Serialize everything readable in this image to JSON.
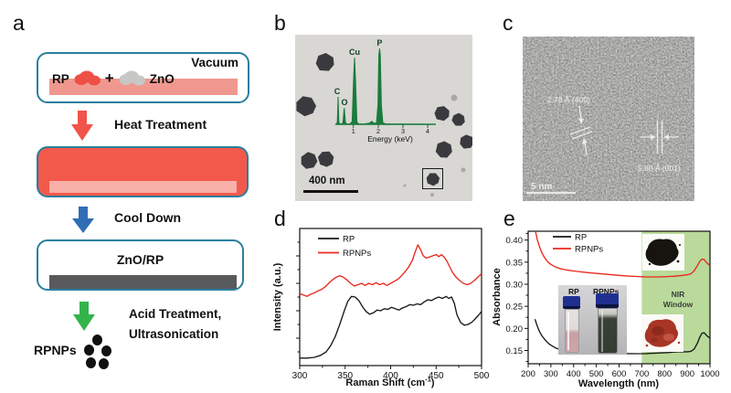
{
  "panels": {
    "a": {
      "label": "a",
      "vacuum": "Vacuum",
      "rp": "RP",
      "plus": "+",
      "zno": "ZnO",
      "heat": "Heat Treatment",
      "cool": "Cool Down",
      "znorp": "ZnO/RP",
      "acid1": "Acid Treatment,",
      "acid2": "Ultrasonication",
      "product": "RPNPs"
    },
    "b": {
      "label": "b",
      "scale_bar": "400 nm",
      "eds": {
        "xlabel": "Energy (keV)",
        "xticks": [
          "1",
          "2",
          "3",
          "4"
        ],
        "peaks": [
          {
            "element": "C",
            "kev": 0.27
          },
          {
            "element": "O",
            "kev": 0.52
          },
          {
            "element": "Cu",
            "kev": 0.93
          },
          {
            "element": "P",
            "kev": 2.01
          }
        ]
      }
    },
    "c": {
      "label": "c",
      "annotation1": "2.78 Å (400)",
      "annotation2": "5.80 Å (001)",
      "scale_bar": "5 nm"
    },
    "d": {
      "label": "d"
    },
    "e": {
      "label": "e",
      "nir_line1": "NIR",
      "nir_line2": "Window",
      "vial_left": "RP",
      "vial_right": "RPNPs"
    }
  },
  "colors": {
    "teal_border": "#2a7f9e",
    "red_fill": "#f3594b",
    "pink_bar": "#f0988f",
    "pale_pink_bar": "#f8b0a8",
    "blue_arrow": "#2f6eb5",
    "green_arrow": "#33b44a",
    "dark_gray_bar": "#58595b",
    "eds_green": "#1a7b3d",
    "nir_green": "#b9da9b",
    "curve_red": "#e8291c",
    "curve_black": "#1a1a1a"
  },
  "chart_data": [
    {
      "type": "line",
      "title": "",
      "xlabel": "Raman Shift (cm⁻¹)",
      "xlabel_parts": [
        "Raman Shift (cm",
        "-1",
        ")"
      ],
      "ylabel": "Intensity (a.u.)",
      "xlim": [
        300,
        500
      ],
      "ylim": [
        0,
        1
      ],
      "grid": false,
      "legend_position": "top-left",
      "xticks": [
        {
          "v": 300,
          "t": "300"
        },
        {
          "v": 350,
          "t": "350"
        },
        {
          "v": 400,
          "t": "400"
        },
        {
          "v": 450,
          "t": "450"
        },
        {
          "v": 500,
          "t": "500"
        }
      ],
      "xminor": [
        325,
        375,
        425,
        475
      ],
      "yticks": [
        {
          "v": 0.2,
          "t": ""
        },
        {
          "v": 0.4,
          "t": ""
        },
        {
          "v": 0.6,
          "t": ""
        },
        {
          "v": 0.8,
          "t": ""
        }
      ],
      "yminor": [
        0.1,
        0.3,
        0.5,
        0.7,
        0.9
      ],
      "series": [
        {
          "name": "RP",
          "color": "#1a1a1a",
          "x": [
            300,
            308,
            316,
            323,
            329,
            334,
            339,
            344,
            349,
            353,
            357,
            361,
            365,
            369,
            373,
            377,
            381,
            385,
            389,
            393,
            397,
            401,
            405,
            409,
            413,
            417,
            421,
            425,
            429,
            433,
            437,
            441,
            445,
            449,
            453,
            457,
            461,
            464,
            467,
            470,
            473,
            477,
            481,
            485,
            489,
            493,
            497,
            500
          ],
          "y": [
            0.055,
            0.055,
            0.06,
            0.075,
            0.1,
            0.145,
            0.21,
            0.3,
            0.4,
            0.47,
            0.505,
            0.5,
            0.475,
            0.43,
            0.395,
            0.375,
            0.385,
            0.405,
            0.4,
            0.415,
            0.41,
            0.425,
            0.415,
            0.405,
            0.42,
            0.43,
            0.445,
            0.44,
            0.45,
            0.445,
            0.465,
            0.48,
            0.475,
            0.49,
            0.5,
            0.49,
            0.505,
            0.49,
            0.5,
            0.455,
            0.37,
            0.315,
            0.295,
            0.3,
            0.315,
            0.34,
            0.37,
            0.395
          ]
        },
        {
          "name": "RPNPs",
          "color": "#e8291c",
          "x": [
            300,
            304,
            308,
            312,
            316,
            320,
            324,
            328,
            332,
            336,
            340,
            344,
            348,
            352,
            356,
            360,
            364,
            368,
            372,
            376,
            380,
            384,
            388,
            392,
            396,
            400,
            404,
            408,
            412,
            416,
            420,
            424,
            427,
            430,
            433,
            436,
            439,
            442,
            446,
            450,
            453,
            456,
            459,
            462,
            465,
            468,
            472,
            476,
            480,
            484,
            488,
            492,
            496,
            500
          ],
          "y": [
            0.525,
            0.515,
            0.505,
            0.52,
            0.53,
            0.545,
            0.555,
            0.575,
            0.6,
            0.625,
            0.645,
            0.655,
            0.645,
            0.625,
            0.6,
            0.58,
            0.59,
            0.6,
            0.585,
            0.6,
            0.59,
            0.605,
            0.59,
            0.6,
            0.585,
            0.6,
            0.615,
            0.63,
            0.655,
            0.685,
            0.72,
            0.77,
            0.83,
            0.88,
            0.845,
            0.8,
            0.785,
            0.79,
            0.8,
            0.81,
            0.795,
            0.81,
            0.79,
            0.76,
            0.72,
            0.68,
            0.645,
            0.62,
            0.6,
            0.59,
            0.6,
            0.62,
            0.645,
            0.67
          ]
        }
      ]
    },
    {
      "type": "line",
      "title": "",
      "xlabel": "Wavelength (nm)",
      "ylabel": "Absorbance",
      "xlim": [
        200,
        1000
      ],
      "ylim": [
        0.12,
        0.42
      ],
      "grid": false,
      "legend_position": "top-left",
      "region": {
        "label": "NIR Window",
        "x0": 700,
        "x1": 1000,
        "color": "#b9da9b"
      },
      "xticks": [
        {
          "v": 200,
          "t": "200"
        },
        {
          "v": 300,
          "t": "300"
        },
        {
          "v": 400,
          "t": "400"
        },
        {
          "v": 500,
          "t": "500"
        },
        {
          "v": 600,
          "t": "600"
        },
        {
          "v": 700,
          "t": "700"
        },
        {
          "v": 800,
          "t": "800"
        },
        {
          "v": 900,
          "t": "900"
        },
        {
          "v": 1000,
          "t": "1000"
        }
      ],
      "xminor": [
        250,
        350,
        450,
        550,
        650,
        750,
        850,
        950
      ],
      "yticks": [
        {
          "v": 0.15,
          "t": "0.15"
        },
        {
          "v": 0.2,
          "t": "0.20"
        },
        {
          "v": 0.25,
          "t": "0.25"
        },
        {
          "v": 0.3,
          "t": "0.30"
        },
        {
          "v": 0.35,
          "t": "0.35"
        },
        {
          "v": 0.4,
          "t": "0.40"
        }
      ],
      "yminor": [
        0.125,
        0.175,
        0.225,
        0.275,
        0.325,
        0.375,
        0.415
      ],
      "series": [
        {
          "name": "RP",
          "color": "#1a1a1a",
          "x": [
            230,
            240,
            250,
            260,
            270,
            280,
            290,
            300,
            320,
            340,
            360,
            380,
            400,
            440,
            480,
            520,
            560,
            600,
            640,
            680,
            700,
            720,
            740,
            760,
            780,
            800,
            820,
            840,
            860,
            880,
            900,
            915,
            930,
            945,
            955,
            965,
            975,
            985,
            1000
          ],
          "y": [
            0.221,
            0.205,
            0.193,
            0.184,
            0.177,
            0.171,
            0.166,
            0.162,
            0.156,
            0.152,
            0.15,
            0.148,
            0.147,
            0.146,
            0.145,
            0.1445,
            0.144,
            0.1435,
            0.143,
            0.1428,
            0.1428,
            0.143,
            0.1435,
            0.144,
            0.1445,
            0.145,
            0.1455,
            0.1465,
            0.147,
            0.1472,
            0.147,
            0.148,
            0.153,
            0.167,
            0.18,
            0.189,
            0.19,
            0.184,
            0.178
          ]
        },
        {
          "name": "RPNPs",
          "color": "#e8291c",
          "x": [
            230,
            240,
            250,
            260,
            270,
            280,
            290,
            300,
            320,
            340,
            360,
            380,
            400,
            440,
            480,
            520,
            560,
            600,
            640,
            680,
            700,
            720,
            740,
            760,
            780,
            800,
            820,
            840,
            860,
            880,
            900,
            915,
            930,
            945,
            955,
            965,
            975,
            985,
            1000
          ],
          "y": [
            0.425,
            0.401,
            0.385,
            0.372,
            0.362,
            0.3545,
            0.349,
            0.345,
            0.339,
            0.3355,
            0.333,
            0.3315,
            0.33,
            0.3275,
            0.3255,
            0.3235,
            0.322,
            0.32,
            0.3185,
            0.3175,
            0.317,
            0.3165,
            0.3165,
            0.3165,
            0.3165,
            0.317,
            0.3175,
            0.318,
            0.319,
            0.32,
            0.3215,
            0.3235,
            0.33,
            0.3425,
            0.3515,
            0.357,
            0.3555,
            0.349,
            0.342
          ]
        }
      ]
    }
  ]
}
